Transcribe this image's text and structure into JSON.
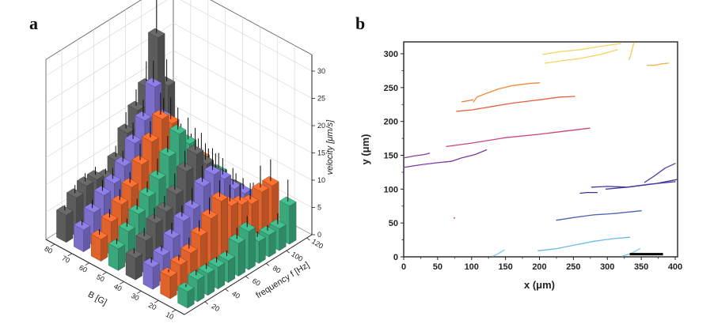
{
  "panels": {
    "a_label": "a",
    "b_label": "b"
  },
  "chart_data": [
    {
      "type": "bar3d",
      "panel": "a",
      "title": "",
      "xlabel": "B [G]",
      "ylabel": "frequency f [Hz]",
      "zlabel": "velocity [μm/s]",
      "x_ticks": [
        "80",
        "70",
        "60",
        "50",
        "40",
        "30",
        "20",
        "10"
      ],
      "y_ticks": [
        "20",
        "40",
        "60",
        "80",
        "100",
        "120"
      ],
      "z_ticks": [
        "0",
        "5",
        "10",
        "15",
        "20",
        "25",
        "30"
      ],
      "zlim": [
        0,
        32
      ],
      "grid": true,
      "B_values": [
        80,
        70,
        60,
        50,
        40,
        30,
        20,
        10
      ],
      "frequencies": [
        10,
        20,
        30,
        40,
        50,
        60,
        70,
        80,
        90,
        100,
        110
      ],
      "series_colors": [
        "#5c5c5c",
        "#7b6fcb",
        "#e0632c",
        "#3ba77c"
      ],
      "series_color_by_B": {
        "80": 0,
        "70": 1,
        "60": 2,
        "50": 3,
        "40": 0,
        "30": 1,
        "20": 2,
        "10": 3
      },
      "values": [
        [
          5,
          7,
          8,
          8,
          7,
          9,
          13,
          16,
          19,
          27,
          17
        ],
        [
          4,
          6,
          8,
          9,
          11,
          14,
          17,
          22,
          15,
          10,
          8
        ],
        [
          4,
          6,
          8,
          10,
          13,
          16,
          19,
          17,
          12,
          9,
          7
        ],
        [
          4,
          6,
          8,
          10,
          12,
          15,
          18,
          15,
          11,
          8,
          6
        ],
        [
          4,
          6,
          8,
          9,
          11,
          14,
          16,
          13,
          10,
          7,
          5
        ],
        [
          4,
          5,
          7,
          9,
          10,
          13,
          14,
          12,
          9,
          7,
          5
        ],
        [
          4,
          5,
          6,
          8,
          10,
          12,
          10,
          9,
          8,
          9,
          9
        ],
        [
          3,
          4,
          4,
          4,
          4,
          6,
          7,
          4,
          4,
          4,
          7
        ]
      ],
      "errors": [
        [
          1,
          1.5,
          1.5,
          1.5,
          1,
          2,
          3,
          3,
          4,
          8,
          4
        ],
        [
          1,
          1.5,
          2,
          2,
          2,
          3,
          3,
          4,
          3,
          2,
          2
        ],
        [
          1,
          1.5,
          2,
          2,
          3,
          3,
          4,
          4,
          3,
          3,
          4
        ],
        [
          1,
          1.5,
          2,
          2,
          3,
          3,
          4,
          4,
          3,
          3,
          3
        ],
        [
          1,
          1.5,
          2,
          2,
          3,
          3,
          4,
          3,
          3,
          2,
          2
        ],
        [
          1,
          1,
          2,
          2,
          3,
          3,
          4,
          3,
          3,
          2,
          2
        ],
        [
          0.5,
          1,
          2,
          2,
          3,
          3,
          3,
          3,
          3,
          4,
          4
        ],
        [
          0.5,
          1,
          1,
          1,
          1,
          2,
          2,
          1,
          1,
          2,
          4
        ]
      ]
    },
    {
      "type": "line",
      "panel": "b",
      "title": "",
      "xlabel": "x (μm)",
      "ylabel": "y (μm)",
      "xlim": [
        0,
        400
      ],
      "ylim": [
        0,
        315
      ],
      "x_ticks": [
        "0",
        "50",
        "100",
        "150",
        "200",
        "250",
        "300",
        "350",
        "400"
      ],
      "y_ticks": [
        "0",
        "50",
        "100",
        "150",
        "200",
        "250",
        "300"
      ],
      "grid": false,
      "scale_bar": {
        "x_start": 333,
        "x_end": 382,
        "y": 4
      },
      "tracks": [
        {
          "color": "#f4d35e",
          "points": [
            [
              205,
              299
            ],
            [
              230,
              303
            ],
            [
              260,
              306
            ],
            [
              290,
              311
            ],
            [
              320,
              315
            ]
          ]
        },
        {
          "color": "#f4d35e",
          "points": [
            [
              208,
              286
            ],
            [
              235,
              290
            ],
            [
              260,
              293
            ],
            [
              290,
              299
            ],
            [
              315,
              306
            ]
          ]
        },
        {
          "color": "#f2cf4f",
          "points": [
            [
              332,
              291
            ],
            [
              335,
              300
            ],
            [
              338,
              312
            ],
            [
              339,
              316
            ]
          ]
        },
        {
          "color": "#efb23a",
          "points": [
            [
              359,
              283
            ],
            [
              370,
              283
            ],
            [
              380,
              285
            ],
            [
              390,
              286
            ]
          ]
        },
        {
          "color": "#ee8a3c",
          "points": [
            [
              103,
              229
            ],
            [
              108,
              236
            ],
            [
              118,
              240
            ],
            [
              140,
              248
            ],
            [
              160,
              253
            ],
            [
              185,
              256
            ],
            [
              200,
              257
            ]
          ]
        },
        {
          "color": "#ec7e44",
          "points": [
            [
              86,
              229
            ],
            [
              97,
              231
            ],
            [
              102,
              232
            ]
          ]
        },
        {
          "color": "#e5603f",
          "points": [
            [
              78,
              215
            ],
            [
              100,
              217
            ],
            [
              130,
              222
            ],
            [
              160,
              227
            ],
            [
              200,
              232
            ],
            [
              230,
              236
            ],
            [
              252,
              237
            ]
          ]
        },
        {
          "color": "#c9447a",
          "points": [
            [
              63,
              163
            ],
            [
              100,
              168
            ],
            [
              150,
              176
            ],
            [
              200,
              181
            ],
            [
              240,
              186
            ],
            [
              274,
              190
            ]
          ]
        },
        {
          "color": "#8f3d9b",
          "points": [
            [
              0,
              146
            ],
            [
              15,
              149
            ],
            [
              30,
              151
            ],
            [
              38,
              153
            ]
          ]
        },
        {
          "color": "#7b3aa0",
          "points": [
            [
              0,
              132
            ],
            [
              25,
              136
            ],
            [
              50,
              139
            ],
            [
              70,
              141
            ],
            [
              85,
              146
            ],
            [
              105,
              151
            ],
            [
              122,
              158
            ]
          ]
        },
        {
          "color": "#5b3fa0",
          "points": [
            [
              355,
              110
            ],
            [
              370,
              120
            ],
            [
              385,
              131
            ],
            [
              400,
              138
            ]
          ]
        },
        {
          "color": "#3f3b9c",
          "points": [
            [
              277,
              103
            ],
            [
              300,
              104
            ],
            [
              330,
              103
            ],
            [
              360,
              107
            ],
            [
              400,
              111
            ]
          ]
        },
        {
          "color": "#453c9e",
          "points": [
            [
              298,
              100
            ],
            [
              330,
              103
            ],
            [
              370,
              108
            ],
            [
              402,
              114
            ]
          ]
        },
        {
          "color": "#2f3990",
          "points": [
            [
              260,
              94
            ],
            [
              270,
              95
            ],
            [
              285,
              95
            ]
          ]
        },
        {
          "color": "#4a63b5",
          "points": [
            [
              225,
              54
            ],
            [
              250,
              58
            ],
            [
              280,
              62
            ],
            [
              310,
              64
            ],
            [
              350,
              68
            ]
          ]
        },
        {
          "color": "#6bbce6",
          "points": [
            [
              198,
              9
            ],
            [
              225,
              12
            ],
            [
              250,
              17
            ],
            [
              280,
              23
            ],
            [
              310,
              27
            ],
            [
              333,
              29
            ]
          ]
        },
        {
          "color": "#7ec8ee",
          "points": [
            [
              132,
              1
            ],
            [
              140,
              5
            ],
            [
              148,
              10
            ]
          ]
        },
        {
          "color": "#7ec8ee",
          "points": [
            [
              322,
              1
            ],
            [
              335,
              5
            ],
            [
              348,
              12
            ]
          ]
        },
        {
          "color": "#c23a88",
          "points": [
            [
              74,
              57
            ],
            [
              75,
              58
            ]
          ]
        }
      ]
    }
  ]
}
